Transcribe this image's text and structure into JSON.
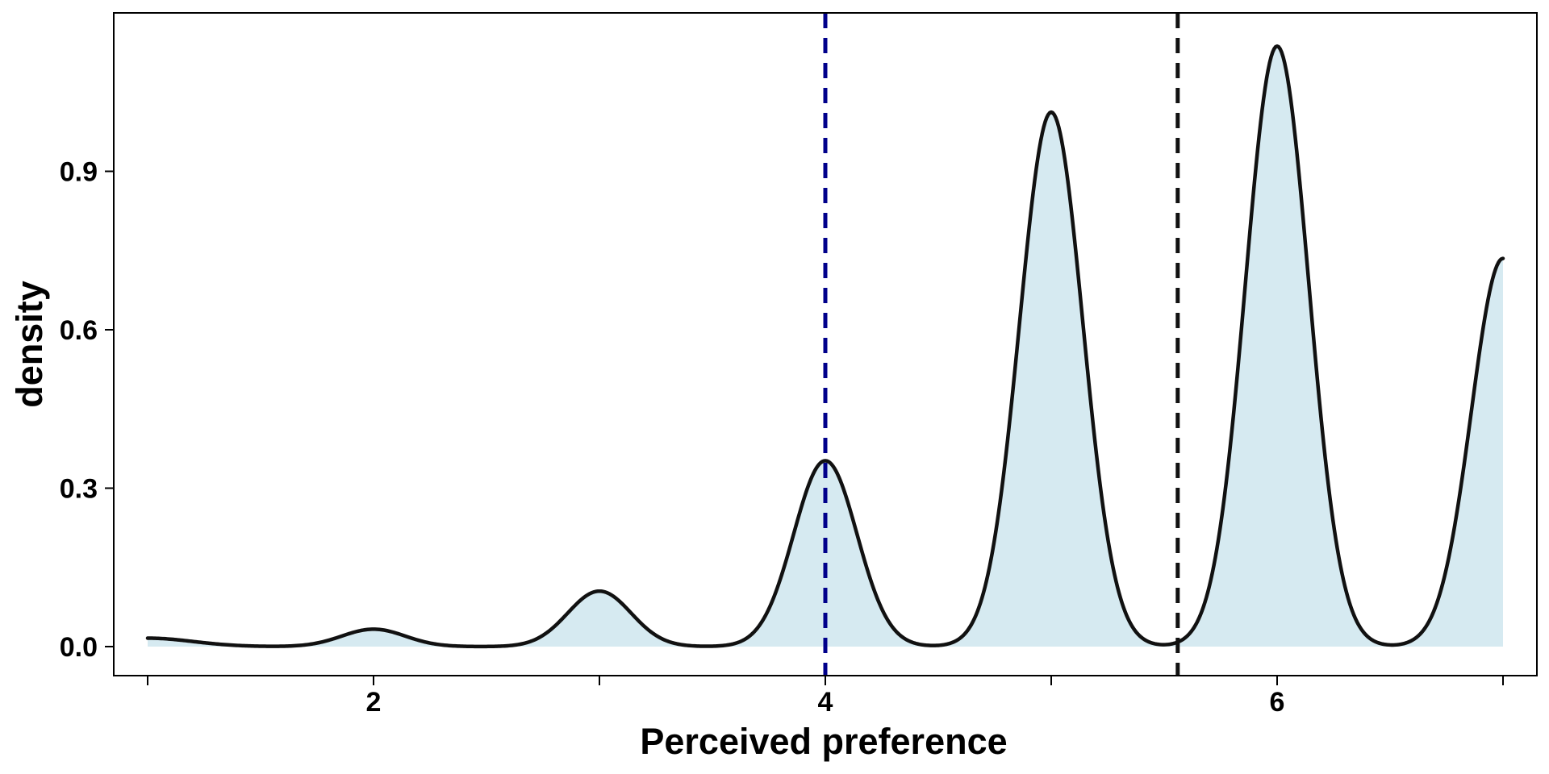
{
  "chart_data": {
    "type": "area",
    "title": "",
    "xlabel": "Perceived preference",
    "ylabel": "density",
    "xlim": [
      0.85,
      7.15
    ],
    "ylim": [
      -0.055,
      1.2
    ],
    "x_ticks": [
      1,
      2,
      3,
      4,
      5,
      6,
      7
    ],
    "x_tick_labels": [
      "",
      "2",
      "",
      "4",
      "",
      "6",
      ""
    ],
    "y_ticks": [
      0.0,
      0.3,
      0.6,
      0.9
    ],
    "y_tick_labels": [
      "0.0",
      "0.3",
      "0.6",
      "0.9"
    ],
    "grid": false,
    "legend": "none",
    "fill_color": "#d6eaf1",
    "line_color": "#111111",
    "peaks": [
      {
        "x": 2,
        "density": 0.033
      },
      {
        "x": 3,
        "density": 0.105
      },
      {
        "x": 4,
        "density": 0.352
      },
      {
        "x": 5,
        "density": 1.012
      },
      {
        "x": 6,
        "density": 1.137
      },
      {
        "x": 7,
        "density": 0.735
      }
    ],
    "start_point": {
      "x": 1,
      "density": 0.016
    },
    "kernel_sd": 0.14,
    "reference_lines": [
      {
        "x": 4.0,
        "color": "#00008b",
        "style": "dashed"
      },
      {
        "x": 5.56,
        "color": "#111111",
        "style": "dashed"
      }
    ]
  }
}
